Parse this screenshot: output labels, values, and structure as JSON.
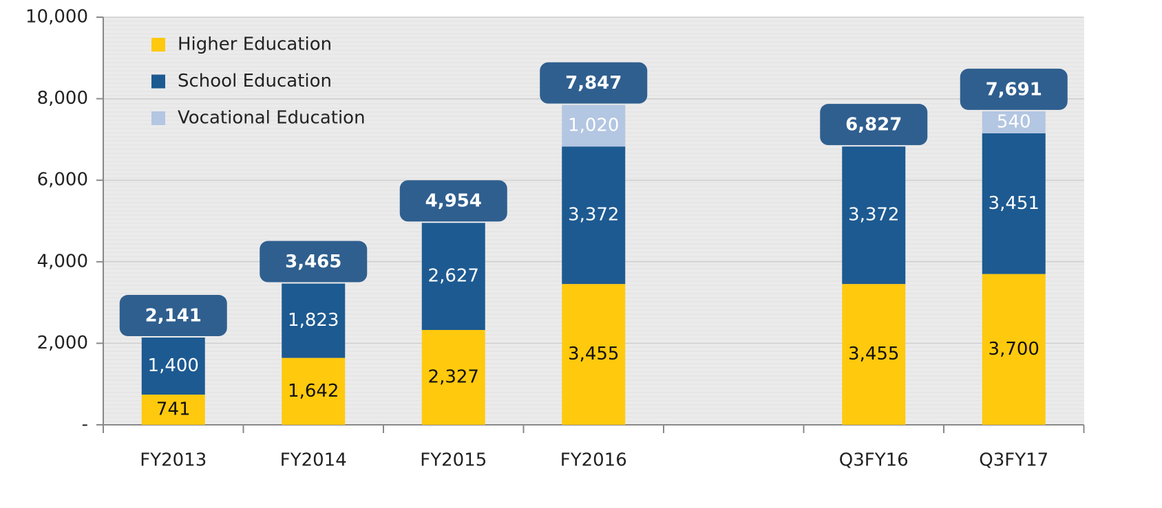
{
  "chart_data": {
    "type": "stacked-bar",
    "categories": [
      "FY2013",
      "FY2014",
      "FY2015",
      "FY2016",
      null,
      "Q3FY16",
      "Q3FY17"
    ],
    "series": [
      {
        "name": "Higher Education",
        "color": "#ffc90e",
        "label_color": "#111111",
        "values": [
          741,
          1642,
          2327,
          3455,
          null,
          3455,
          3700
        ],
        "value_labels": [
          "741",
          "1,642",
          "2,327",
          "3,455",
          null,
          "3,455",
          "3,700"
        ]
      },
      {
        "name": "School Education",
        "color": "#1d5a91",
        "label_color": "#ffffff",
        "values": [
          1400,
          1823,
          2627,
          3372,
          null,
          3372,
          3451
        ],
        "value_labels": [
          "1,400",
          "1,823",
          "2,627",
          "3,372",
          null,
          "3,372",
          "3,451"
        ]
      },
      {
        "name": "Vocational Education",
        "color": "#b3c6e2",
        "label_color": "#ffffff",
        "values": [
          null,
          null,
          null,
          1020,
          null,
          null,
          540
        ],
        "value_labels": [
          null,
          null,
          null,
          "1,020",
          null,
          null,
          "540"
        ]
      }
    ],
    "totals": [
      {
        "value": 2141,
        "label": "2,141"
      },
      {
        "value": 3465,
        "label": "3,465"
      },
      {
        "value": 4954,
        "label": "4,954"
      },
      {
        "value": 7847,
        "label": "7,847"
      },
      null,
      {
        "value": 6827,
        "label": "6,827"
      },
      {
        "value": 7691,
        "label": "7,691"
      }
    ],
    "total_color": "#2f5f8f",
    "ylim": [
      0,
      10000
    ],
    "yticks": [
      {
        "value": 0,
        "label": "-"
      },
      {
        "value": 2000,
        "label": "2,000"
      },
      {
        "value": 4000,
        "label": "4,000"
      },
      {
        "value": 6000,
        "label": "6,000"
      },
      {
        "value": 8000,
        "label": "8,000"
      },
      {
        "value": 10000,
        "label": "10,000"
      }
    ],
    "grid": true,
    "legend": "upper left"
  }
}
